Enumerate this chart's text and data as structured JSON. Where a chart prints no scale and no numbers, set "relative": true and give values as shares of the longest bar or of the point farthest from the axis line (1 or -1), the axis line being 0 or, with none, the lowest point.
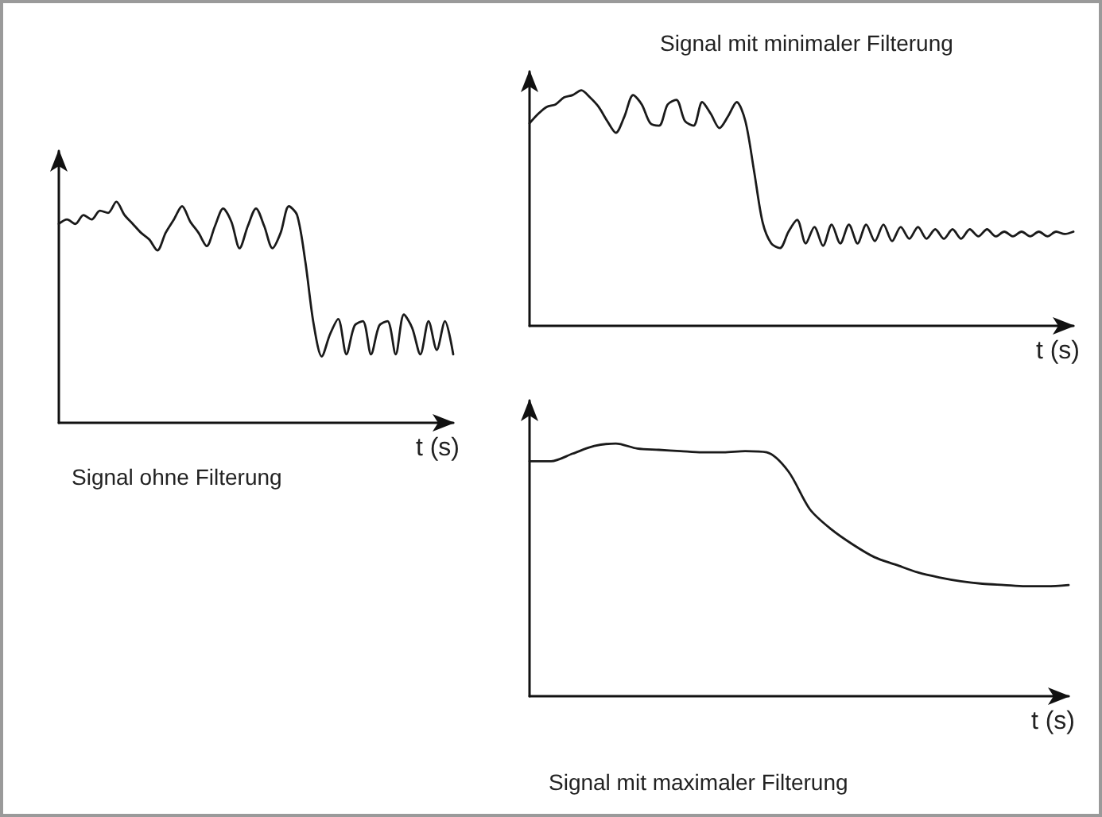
{
  "chart_data": [
    {
      "type": "line",
      "title": "Signal ohne Filterung",
      "xlabel": "t (s)",
      "relative": true,
      "categories": [
        null,
        null,
        null,
        null,
        null,
        null,
        null,
        null,
        null,
        null,
        null,
        null,
        null,
        null,
        null,
        null,
        null,
        null,
        null,
        null,
        null,
        null,
        null,
        null,
        null,
        null,
        null,
        null,
        null,
        null,
        null,
        null,
        null,
        null,
        null,
        null,
        null,
        null,
        null,
        null,
        null,
        null,
        null,
        null,
        null,
        null,
        null,
        null,
        null
      ],
      "series": [
        {
          "color": "#1a1a1a",
          "values": [
            0.9,
            0.92,
            0.9,
            0.94,
            0.92,
            0.96,
            0.95,
            1.0,
            0.94,
            0.9,
            0.86,
            0.83,
            0.78,
            0.86,
            0.92,
            0.98,
            0.91,
            0.86,
            0.8,
            0.89,
            0.97,
            0.91,
            0.79,
            0.89,
            0.97,
            0.89,
            0.79,
            0.86,
            0.98,
            0.94,
            0.73,
            0.45,
            0.3,
            0.4,
            0.47,
            0.31,
            0.44,
            0.46,
            0.31,
            0.44,
            0.46,
            0.31,
            0.49,
            0.43,
            0.31,
            0.46,
            0.33,
            0.46,
            0.31
          ]
        }
      ]
    },
    {
      "type": "line",
      "title": "Signal mit minimaler Filterung",
      "xlabel": "t (s)",
      "relative": true,
      "categories": [
        null,
        null,
        null,
        null,
        null,
        null,
        null,
        null,
        null,
        null,
        null,
        null,
        null,
        null,
        null,
        null,
        null,
        null,
        null,
        null,
        null,
        null,
        null,
        null,
        null,
        null,
        null,
        null,
        null,
        null,
        null,
        null,
        null,
        null,
        null,
        null,
        null,
        null,
        null,
        null,
        null,
        null,
        null,
        null,
        null,
        null,
        null,
        null,
        null,
        null,
        null,
        null,
        null,
        null,
        null,
        null,
        null,
        null,
        null,
        null,
        null,
        null,
        null,
        null
      ],
      "series": [
        {
          "color": "#1a1a1a",
          "values": [
            0.86,
            0.9,
            0.93,
            0.94,
            0.97,
            0.98,
            1.0,
            0.97,
            0.93,
            0.87,
            0.82,
            0.89,
            0.98,
            0.94,
            0.86,
            0.85,
            0.94,
            0.96,
            0.87,
            0.85,
            0.95,
            0.9,
            0.84,
            0.89,
            0.95,
            0.87,
            0.66,
            0.44,
            0.35,
            0.33,
            0.4,
            0.45,
            0.35,
            0.42,
            0.34,
            0.43,
            0.35,
            0.43,
            0.35,
            0.43,
            0.36,
            0.43,
            0.36,
            0.42,
            0.37,
            0.42,
            0.37,
            0.41,
            0.37,
            0.41,
            0.37,
            0.41,
            0.38,
            0.41,
            0.38,
            0.4,
            0.38,
            0.4,
            0.38,
            0.4,
            0.38,
            0.4,
            0.39,
            0.4
          ]
        }
      ]
    },
    {
      "type": "line",
      "title": "Signal mit maximaler Filterung",
      "xlabel": "t (s)",
      "relative": true,
      "categories": [
        null,
        null,
        null,
        null,
        null,
        null,
        null,
        null,
        null,
        null,
        null,
        null,
        null,
        null,
        null,
        null,
        null,
        null,
        null,
        null,
        null,
        null,
        null,
        null,
        null,
        null
      ],
      "series": [
        {
          "color": "#1a1a1a",
          "values": [
            0.93,
            0.93,
            0.96,
            0.99,
            1.0,
            0.98,
            0.975,
            0.97,
            0.965,
            0.965,
            0.97,
            0.965,
            0.89,
            0.74,
            0.66,
            0.6,
            0.55,
            0.52,
            0.49,
            0.47,
            0.455,
            0.445,
            0.44,
            0.435,
            0.435,
            0.44
          ]
        }
      ]
    }
  ]
}
